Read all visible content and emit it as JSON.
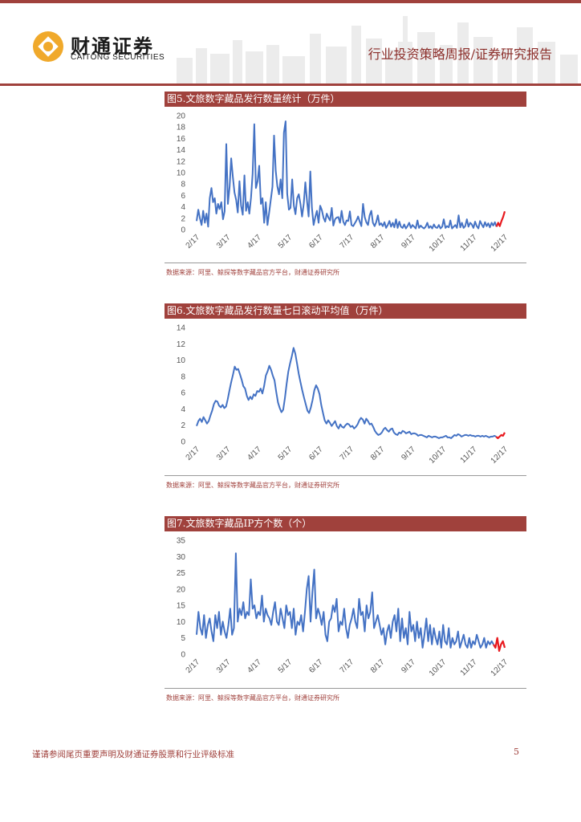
{
  "header": {
    "logo_cn": "财通证券",
    "logo_en": "CAITONG SECURITIES",
    "title": "行业投资策略周报/证券研究报告"
  },
  "footer": {
    "note": "谨请参阅尾页重要声明及财通证券股票和行业评级标准",
    "page": "5"
  },
  "colors": {
    "brand": "#a0413c",
    "series": "#4472c4",
    "highlight": "#e8191e"
  },
  "chart_data": [
    {
      "type": "line",
      "title": "图5.文旅数字藏品发行数量统计（万件）",
      "source": "数据来源：阿里、鲸探等数字藏品官方平台，财通证券研究所",
      "x_ticks": [
        "2/17",
        "3/17",
        "4/17",
        "5/17",
        "6/17",
        "7/17",
        "8/17",
        "9/17",
        "10/17",
        "11/17",
        "12/17"
      ],
      "y_ticks": [
        "0",
        "2",
        "4",
        "6",
        "8",
        "10",
        "12",
        "14",
        "16",
        "18",
        "20"
      ],
      "ylim": [
        0,
        20
      ],
      "series_main": [
        1.5,
        3.5,
        2,
        0.8,
        3.3,
        1.2,
        2.8,
        0.5,
        5.5,
        7.3,
        4.8,
        5.5,
        2.8,
        4.5,
        3.6,
        4.8,
        1.8,
        3.2,
        15,
        4.5,
        7.5,
        12.5,
        9.2,
        6.5,
        5.2,
        3,
        8.5,
        4.2,
        2.6,
        9.5,
        3.3,
        4.8,
        2.8,
        5.6,
        9.8,
        18.5,
        7.3,
        8.5,
        11.2,
        4.5,
        5.5,
        1.2,
        4.8,
        0.8,
        3,
        5.2,
        7.5,
        16.5,
        10.3,
        7.6,
        6.2,
        8.8,
        5.5,
        17,
        19,
        6.3,
        3.5,
        3.8,
        8.8,
        4.2,
        2.7,
        5.5,
        6.2,
        4.5,
        2.3,
        4.5,
        8.3,
        5,
        2.3,
        10.2,
        3.8,
        0.8,
        2.2,
        3.3,
        1.2,
        4.2,
        3.4,
        2.1,
        1.4,
        2.8,
        2.1,
        1.6,
        3.8,
        0.7,
        1.8,
        2.1,
        2.2,
        1.2,
        3.3,
        1.4,
        0.8,
        1.6,
        1.5,
        3.2,
        0.8,
        0.6,
        1.1,
        1.6,
        2.3,
        1.4,
        0.6,
        4.5,
        2.2,
        1.3,
        0.8,
        2.5,
        3.3,
        1.2,
        0.6,
        1.3,
        2.5,
        0.8,
        1.1,
        0.6,
        1.3,
        0.3,
        0.8,
        1.5,
        0.5,
        1.2,
        0.4,
        1.8,
        0.3,
        1.4,
        0.5,
        0.3,
        0.9,
        0.2,
        0.6,
        1.2,
        0.3,
        0.8,
        0.5,
        0.2,
        1.6,
        0.3,
        0.7,
        0.4,
        0.2,
        0.5,
        1.2,
        0.3,
        0.6,
        0.2,
        0.9,
        0.4,
        0.3,
        0.8,
        0.2,
        0.5,
        1.8,
        0.3,
        0.6,
        0.4,
        1.6,
        0.2,
        0.5,
        0.8,
        0.3,
        2.5,
        0.4,
        1.2,
        0.3,
        0.6,
        1.8,
        0.5,
        1.2,
        0.9,
        0.3,
        1.4,
        0.6,
        0.2,
        1.5,
        0.9,
        0.4,
        1.3,
        0.6,
        1.1,
        0.4,
        1.2,
        0.7,
        1.3,
        0.5
      ],
      "series_recent": [
        0.5,
        1.2,
        0.6,
        1.5,
        2.2,
        3.2
      ]
    },
    {
      "type": "line",
      "title": "图6.文旅数字藏品发行数量七日滚动平均值（万件）",
      "source": "数据来源：阿里、鲸探等数字藏品官方平台，财通证券研究所",
      "x_ticks": [
        "2/17",
        "3/17",
        "4/17",
        "5/17",
        "6/17",
        "7/17",
        "8/17",
        "9/17",
        "10/17",
        "11/17",
        "12/17"
      ],
      "y_ticks": [
        "0",
        "2",
        "4",
        "6",
        "8",
        "10",
        "12",
        "14"
      ],
      "ylim": [
        0,
        14
      ],
      "series_main": [
        1.9,
        2.5,
        2.8,
        2.4,
        3,
        2.6,
        2.2,
        2.5,
        3.2,
        3.8,
        4.6,
        5,
        4.9,
        4.4,
        4.2,
        4.5,
        4.1,
        4.3,
        5.2,
        6.3,
        7.3,
        8.2,
        9.2,
        8.8,
        8.9,
        8.3,
        7.6,
        6.8,
        6.5,
        5.6,
        5.1,
        5.5,
        5.2,
        5.8,
        5.6,
        6.2,
        6.1,
        6.5,
        5.9,
        6.8,
        8.1,
        8.6,
        9.3,
        8.8,
        8.1,
        7.5,
        6.1,
        4.8,
        4.1,
        3.6,
        3.9,
        5.3,
        7.1,
        8.6,
        9.6,
        10.5,
        11.5,
        10.8,
        9.6,
        8.3,
        7.3,
        6.3,
        5.4,
        4.6,
        3.8,
        3.5,
        4.2,
        5.1,
        6.3,
        6.9,
        6.5,
        5.8,
        4.5,
        3.5,
        2.6,
        2.2,
        2.6,
        2.3,
        1.9,
        2.2,
        2.5,
        1.9,
        1.6,
        2.1,
        1.8,
        1.7,
        2,
        2.2,
        2.1,
        1.8,
        1.9,
        1.6,
        1.8,
        2.1,
        2.6,
        2.9,
        2.7,
        2.2,
        2.8,
        2.5,
        2.1,
        2.2,
        1.8,
        1.3,
        1,
        0.8,
        0.9,
        1.1,
        1.5,
        1.7,
        1.4,
        1.2,
        1.5,
        1.6,
        1.1,
        0.9,
        0.8,
        1.1,
        1,
        1.3,
        1.2,
        1,
        1.1,
        1.2,
        0.9,
        1,
        1,
        0.9,
        0.7,
        0.8,
        0.8,
        0.7,
        0.6,
        0.5,
        0.7,
        0.6,
        0.5,
        0.6,
        0.6,
        0.5,
        0.4,
        0.5,
        0.5,
        0.6,
        0.7,
        0.5,
        0.5,
        0.4,
        0.6,
        0.8,
        0.7,
        0.9,
        0.8,
        0.6,
        0.7,
        0.8,
        0.8,
        0.7,
        0.8,
        0.7,
        0.7,
        0.6,
        0.7,
        0.7,
        0.6,
        0.7,
        0.6,
        0.7,
        0.6,
        0.5,
        0.6,
        0.6,
        0.7,
        0.6
      ],
      "series_recent": [
        0.6,
        0.4,
        0.6,
        0.8,
        0.7,
        1.1
      ]
    },
    {
      "type": "line",
      "title": "图7.文旅数字藏品IP方个数（个）",
      "source": "数据来源：阿里、鲸探等数字藏品官方平台，财通证券研究所",
      "x_ticks": [
        "2/17",
        "3/17",
        "4/17",
        "5/17",
        "6/17",
        "7/17",
        "8/17",
        "9/17",
        "10/17",
        "11/17",
        "12/17"
      ],
      "y_ticks": [
        "0",
        "5",
        "10",
        "15",
        "20",
        "25",
        "30",
        "35"
      ],
      "ylim": [
        0,
        35
      ],
      "series_main": [
        6,
        13,
        8,
        6,
        12,
        5,
        9,
        11,
        7,
        4,
        12,
        8,
        13,
        6,
        10,
        7,
        5,
        9,
        14,
        6,
        8,
        31,
        10,
        14,
        12,
        16,
        11,
        13,
        12,
        23,
        14,
        15,
        11,
        13,
        12,
        18,
        10,
        14,
        12,
        11,
        9,
        13,
        16,
        10,
        9,
        14,
        11,
        8,
        15,
        12,
        13,
        8,
        14,
        6,
        10,
        9,
        12,
        7,
        13,
        20,
        24,
        10,
        19,
        26,
        11,
        14,
        12,
        9,
        13,
        6,
        4,
        10,
        11,
        15,
        13,
        17,
        7,
        10,
        9,
        14,
        8,
        5,
        9,
        11,
        14,
        10,
        8,
        17,
        12,
        13,
        7,
        15,
        11,
        13,
        19,
        8,
        10,
        12,
        9,
        6,
        8,
        3,
        7,
        9,
        5,
        10,
        12,
        7,
        14,
        4,
        11,
        5,
        8,
        3,
        13,
        7,
        9,
        4,
        10,
        5,
        8,
        2,
        6,
        11,
        4,
        9,
        3,
        8,
        5,
        3,
        7,
        2,
        9,
        4,
        3,
        8,
        2,
        5,
        3,
        4,
        7,
        2,
        4,
        6,
        3,
        2,
        5,
        2,
        4,
        3,
        6,
        4,
        2,
        3,
        5,
        2,
        4,
        3,
        4,
        3
      ],
      "series_recent": [
        3,
        2,
        5,
        1,
        3,
        4,
        2
      ]
    }
  ]
}
